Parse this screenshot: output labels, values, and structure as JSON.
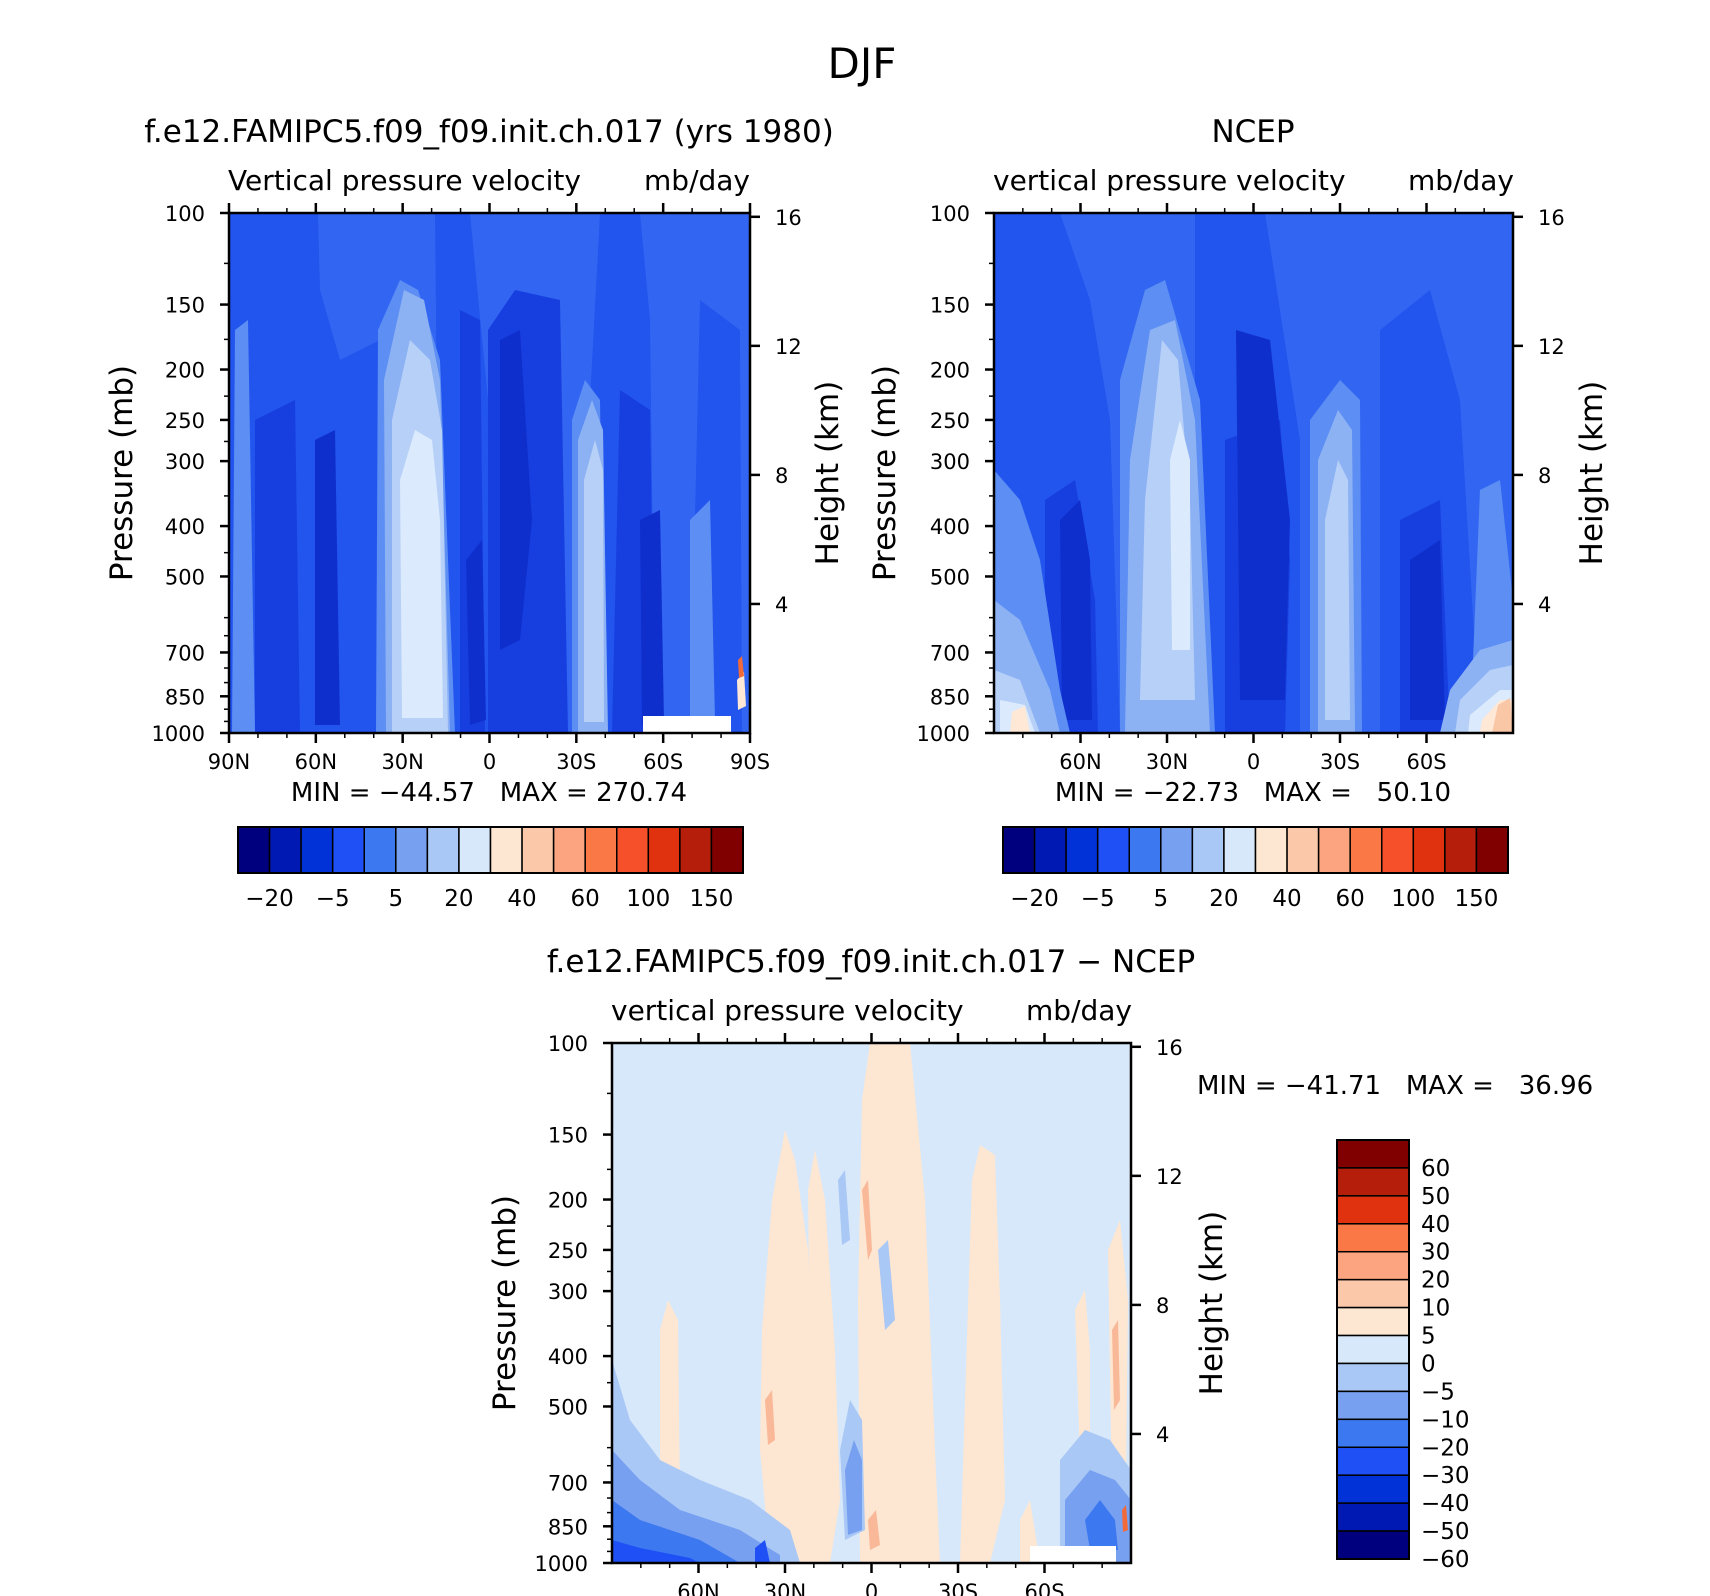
{
  "figure": {
    "title": "DJF"
  },
  "chart_data": [
    {
      "type": "contour",
      "title": "f.e12.FAMIPC5.f09_f09.init.ch.017 (yrs 1980)",
      "subtitle_left": "Vertical pressure velocity",
      "subtitle_right": "mb/day",
      "ylabel": "Pressure (mb)",
      "ylabel_right": "Height (km)",
      "x_ticks": [
        "90N",
        "60N",
        "30N",
        "0",
        "30S",
        "60S",
        "90S"
      ],
      "x_tick_lats": [
        90,
        60,
        30,
        0,
        -30,
        -60,
        -90
      ],
      "xlim": [
        90,
        -90
      ],
      "y_ticks": [
        "100",
        "150",
        "200",
        "250",
        "300",
        "400",
        "500",
        "700",
        "850",
        "1000"
      ],
      "y_tick_values": [
        100,
        150,
        200,
        250,
        300,
        400,
        500,
        700,
        850,
        1000
      ],
      "ylim": [
        100,
        1000
      ],
      "height_ticks": [
        "16",
        "12",
        "8",
        "4"
      ],
      "height_values": [
        16,
        12,
        8,
        4
      ],
      "stats": "MIN = −44.57   MAX = 270.74",
      "colorbar": {
        "orientation": "horizontal",
        "colors": [
          "#00007f",
          "#0019b2",
          "#0032d8",
          "#1e50f5",
          "#3c78f0",
          "#78a0f0",
          "#aac8f5",
          "#d7e8fa",
          "#fde6d2",
          "#fcc8aa",
          "#fca37f",
          "#fa7846",
          "#f5502a",
          "#e1320f",
          "#b41e0a",
          "#800000"
        ],
        "labels": [
          "−20",
          "−5",
          "5",
          "20",
          "40",
          "60",
          "100",
          "150"
        ]
      },
      "field_colors": [
        "#3266f2",
        "#2254ee",
        "#173fe0",
        "#0f2fcc",
        "#5c8ef3",
        "#8db2f4",
        "#b7d0f7",
        "#dbeafc",
        "#ffe8d6",
        "#f26a3a"
      ]
    },
    {
      "type": "contour",
      "title": "NCEP",
      "subtitle_left": "vertical pressure velocity",
      "subtitle_right": "mb/day",
      "ylabel": "Pressure (mb)",
      "ylabel_right": "Height (km)",
      "x_ticks": [
        "60N",
        "30N",
        "0",
        "30S",
        "60S"
      ],
      "x_tick_lats": [
        60,
        30,
        0,
        -30,
        -60
      ],
      "xlim": [
        90,
        -90
      ],
      "y_ticks": [
        "100",
        "150",
        "200",
        "250",
        "300",
        "400",
        "500",
        "700",
        "850",
        "1000"
      ],
      "y_tick_values": [
        100,
        150,
        200,
        250,
        300,
        400,
        500,
        700,
        850,
        1000
      ],
      "ylim": [
        100,
        1000
      ],
      "height_ticks": [
        "16",
        "12",
        "8",
        "4"
      ],
      "height_values": [
        16,
        12,
        8,
        4
      ],
      "stats": "MIN = −22.73   MAX =   50.10",
      "colorbar": {
        "orientation": "horizontal",
        "colors": [
          "#00007f",
          "#0019b2",
          "#0032d8",
          "#1e50f5",
          "#3c78f0",
          "#78a0f0",
          "#aac8f5",
          "#d7e8fa",
          "#fde6d2",
          "#fcc8aa",
          "#fca37f",
          "#fa7846",
          "#f5502a",
          "#e1320f",
          "#b41e0a",
          "#800000"
        ],
        "labels": [
          "−20",
          "−5",
          "5",
          "20",
          "40",
          "60",
          "100",
          "150"
        ]
      },
      "field_colors": [
        "#3266f2",
        "#2254ee",
        "#173fe0",
        "#0f2fcc",
        "#5c8ef3",
        "#8db2f4",
        "#b7d0f7",
        "#dbeafc",
        "#ffe8d6",
        "#f9c6a6"
      ]
    },
    {
      "type": "contour",
      "title": "f.e12.FAMIPC5.f09_f09.init.ch.017 − NCEP",
      "subtitle_left": "vertical pressure velocity",
      "subtitle_right": "mb/day",
      "ylabel": "Pressure (mb)",
      "ylabel_right": "Height (km)",
      "x_ticks": [
        "60N",
        "30N",
        "0",
        "30S",
        "60S"
      ],
      "x_tick_lats": [
        60,
        30,
        0,
        -30,
        -60
      ],
      "xlim": [
        90,
        -90
      ],
      "y_ticks": [
        "100",
        "150",
        "200",
        "250",
        "300",
        "400",
        "500",
        "700",
        "850",
        "1000"
      ],
      "y_tick_values": [
        100,
        150,
        200,
        250,
        300,
        400,
        500,
        700,
        850,
        1000
      ],
      "ylim": [
        100,
        1000
      ],
      "height_ticks": [
        "16",
        "12",
        "8",
        "4"
      ],
      "height_values": [
        16,
        12,
        8,
        4
      ],
      "stats": "MIN = −41.71   MAX =   36.96",
      "colorbar": {
        "orientation": "vertical",
        "colors": [
          "#800000",
          "#b41e0a",
          "#e1320f",
          "#fa7846",
          "#fca37f",
          "#fcc8aa",
          "#fde6d2",
          "#d7e8fa",
          "#aac8f5",
          "#78a0f0",
          "#3c78f0",
          "#1e50f5",
          "#0032d8",
          "#0019b2",
          "#00007f"
        ],
        "labels": [
          "60",
          "50",
          "40",
          "30",
          "20",
          "10",
          "5",
          "0",
          "−5",
          "−10",
          "−20",
          "−30",
          "−40",
          "−50",
          "−60"
        ]
      },
      "field_colors": [
        "#d7e8fa",
        "#fde6d2",
        "#f9b898",
        "#aac8f5",
        "#78a0f0",
        "#3c78f0",
        "#1e50f5",
        "#f26a3a"
      ]
    }
  ]
}
